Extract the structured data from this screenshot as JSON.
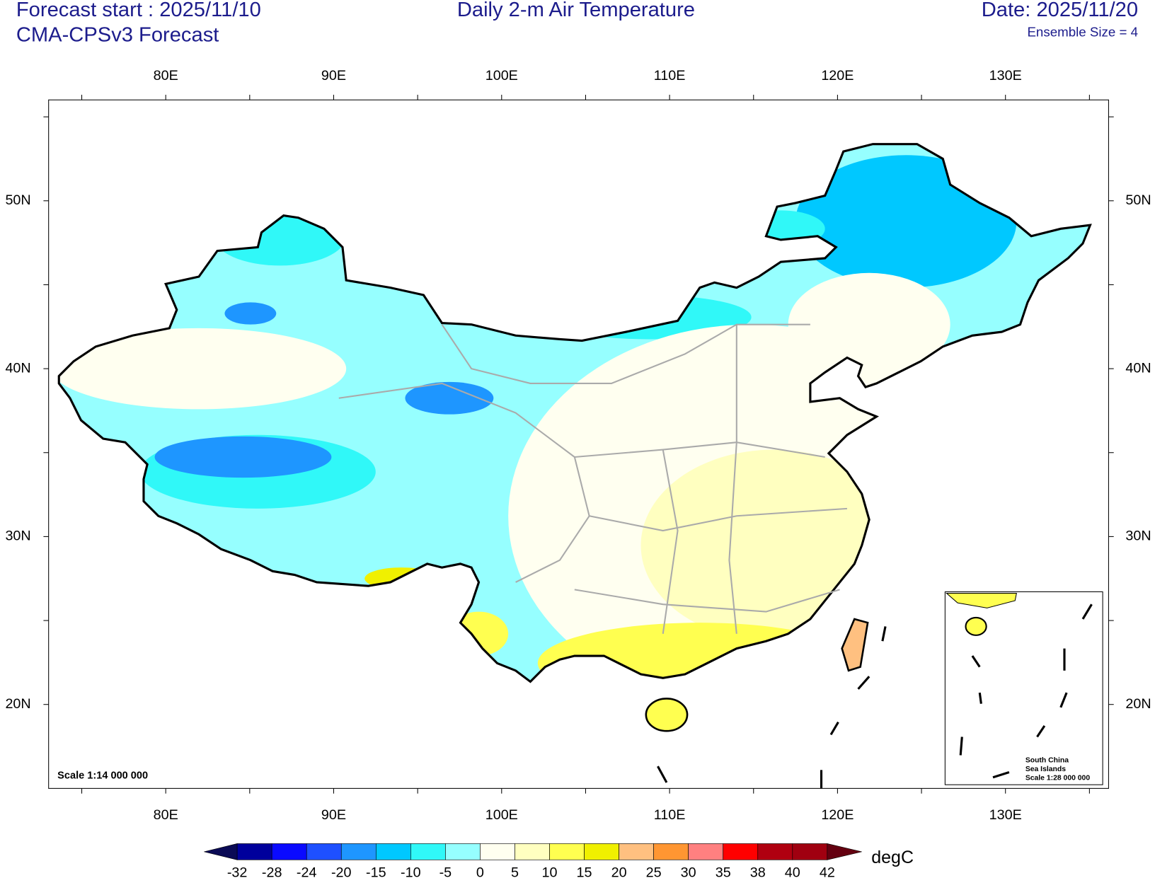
{
  "header": {
    "left_title": "Forecast start : 2025/11/10",
    "left_subtitle": "CMA-CPSv3 Forecast",
    "center_title": "Daily 2-m Air Temperature",
    "right_title": "Date: 2025/11/20",
    "right_subtitle": "Ensemble Size = 4"
  },
  "map": {
    "lon_labels": [
      "80E",
      "90E",
      "100E",
      "110E",
      "120E",
      "130E"
    ],
    "lat_labels": [
      "50N",
      "40N",
      "30N",
      "20N"
    ],
    "scale": "Scale 1:14 000 000",
    "inset": {
      "lines": [
        "South China",
        "Sea Islands",
        "Scale 1:28 000 000"
      ]
    }
  },
  "colorbar": {
    "levels": [
      -32,
      -28,
      -24,
      -20,
      -15,
      -10,
      -5,
      0,
      5,
      10,
      15,
      20,
      25,
      30,
      35,
      38,
      40,
      42
    ],
    "colors": [
      "#0a0a55",
      "#00009c",
      "#0a0aff",
      "#1e50ff",
      "#1e96ff",
      "#00c8ff",
      "#30f8f8",
      "#96ffff",
      "#fffff0",
      "#ffffc0",
      "#ffff50",
      "#f0f000",
      "#ffc080",
      "#ff9632",
      "#ff8080",
      "#ff0000",
      "#b00010",
      "#a00010",
      "#640010"
    ],
    "unit": "degC"
  }
}
